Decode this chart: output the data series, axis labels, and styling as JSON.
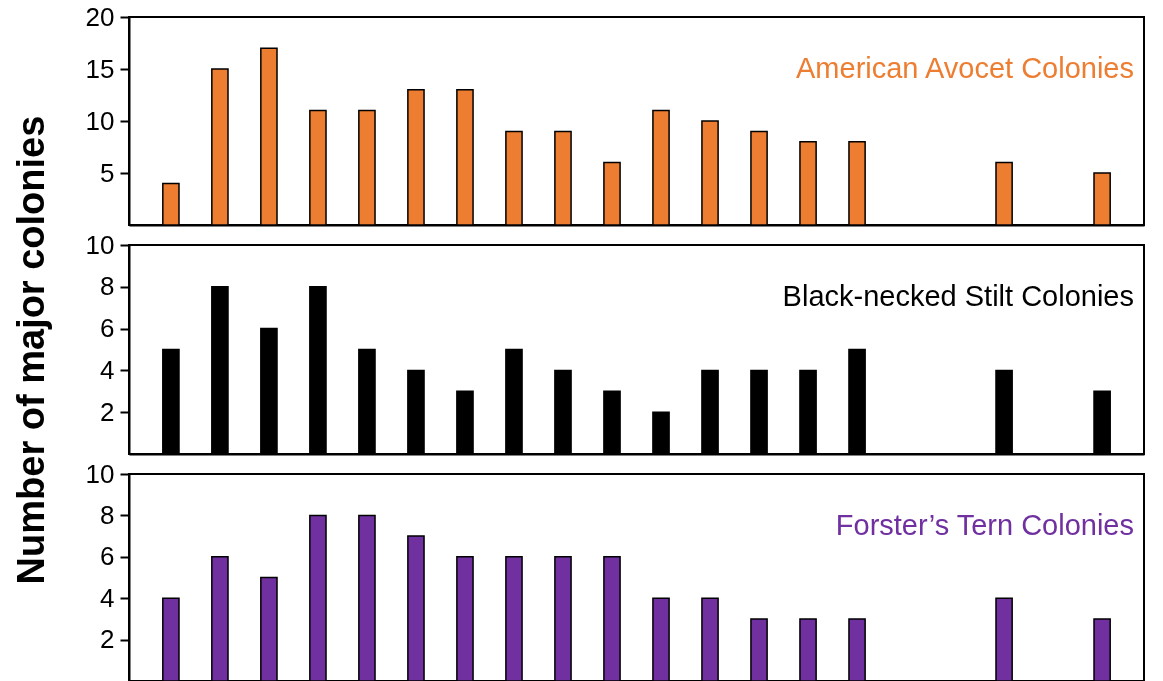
{
  "chart_data": [
    {
      "type": "bar",
      "categories": [
        null,
        null,
        null,
        null,
        null,
        null,
        null,
        null,
        null,
        null,
        null,
        null,
        null,
        null,
        null,
        null,
        null,
        null,
        null,
        null
      ],
      "series": [
        {
          "name": "American Avocet Colonies",
          "color": "#ed7d31",
          "values": [
            4,
            15,
            17,
            11,
            11,
            13,
            13,
            9,
            9,
            6,
            11,
            10,
            9,
            8,
            8,
            null,
            null,
            6,
            null,
            5
          ]
        }
      ],
      "ylim": [
        0,
        20
      ],
      "yticks": [
        5,
        10,
        15,
        20
      ],
      "tick_labels": "y"
    },
    {
      "type": "bar",
      "categories": [
        null,
        null,
        null,
        null,
        null,
        null,
        null,
        null,
        null,
        null,
        null,
        null,
        null,
        null,
        null,
        null,
        null,
        null,
        null,
        null
      ],
      "series": [
        {
          "name": "Black-necked Stilt Colonies",
          "color": "#000000",
          "values": [
            5,
            8,
            6,
            8,
            5,
            4,
            3,
            5,
            4,
            3,
            2,
            4,
            4,
            4,
            5,
            null,
            null,
            4,
            null,
            3
          ]
        }
      ],
      "ylim": [
        0,
        10
      ],
      "yticks": [
        2,
        4,
        6,
        8,
        10
      ],
      "tick_labels": "y",
      "ylabel": "Number of major colonies"
    },
    {
      "type": "bar",
      "categories": [
        null,
        null,
        null,
        null,
        null,
        null,
        null,
        null,
        null,
        null,
        null,
        null,
        null,
        null,
        null,
        null,
        null,
        null,
        null,
        null
      ],
      "series": [
        {
          "name": "Forster’s Tern Colonies",
          "color": "#7030a0",
          "values": [
            4,
            6,
            5,
            8,
            8,
            7,
            6,
            6,
            6,
            6,
            4,
            4,
            3,
            3,
            3,
            null,
            null,
            4,
            null,
            3
          ]
        }
      ],
      "ylim": [
        0,
        10
      ],
      "yticks": [
        2,
        4,
        6,
        8,
        10
      ],
      "tick_labels": "y"
    }
  ]
}
